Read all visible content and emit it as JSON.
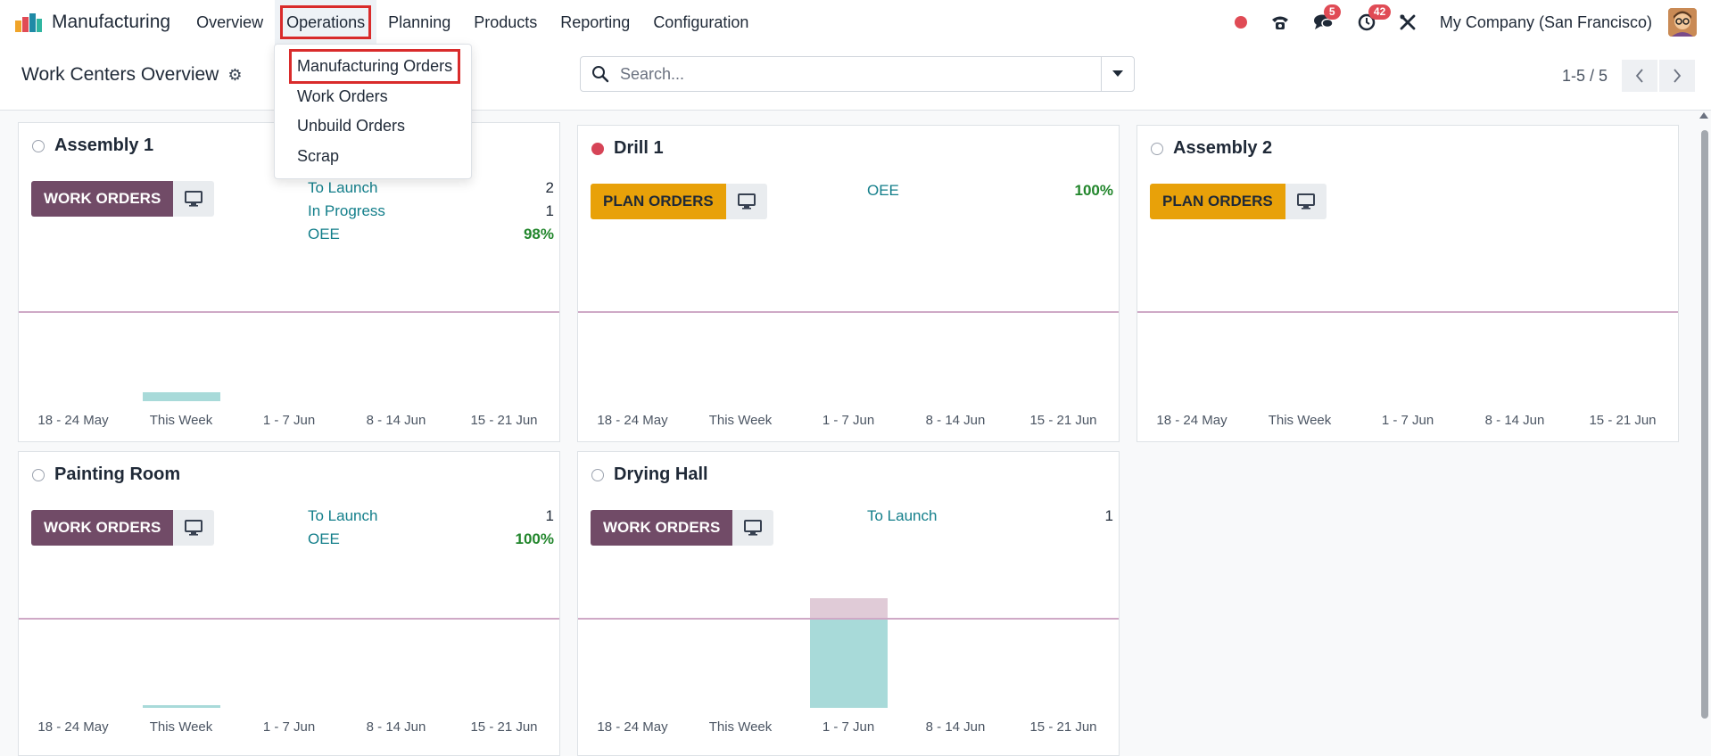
{
  "navbar": {
    "app_name": "Manufacturing",
    "menu": [
      "Overview",
      "Operations",
      "Planning",
      "Products",
      "Reporting",
      "Configuration"
    ],
    "messages_count": "5",
    "activities_count": "42",
    "company": "My Company (San Francisco)"
  },
  "control": {
    "title": "Work Centers Overview",
    "search_placeholder": "Search...",
    "pager": "1-5 / 5"
  },
  "operations_menu": {
    "items": [
      "Manufacturing Orders",
      "Work Orders",
      "Unbuild Orders",
      "Scrap"
    ]
  },
  "cards": [
    {
      "name": "Assembly 1",
      "status": "grey",
      "button": "Work Orders",
      "stats": [
        {
          "label": "To Launch",
          "value": "2"
        },
        {
          "label": "In Progress",
          "value": "1"
        },
        {
          "label": "OEE",
          "value": "98%"
        }
      ]
    },
    {
      "name": "Drill 1",
      "status": "red",
      "button": "Plan Orders",
      "stats": [
        {
          "label": "OEE",
          "value": "100%"
        }
      ]
    },
    {
      "name": "Assembly 2",
      "status": "grey",
      "button": "Plan Orders",
      "stats": []
    },
    {
      "name": "Painting Room",
      "status": "grey",
      "button": "Work Orders",
      "stats": [
        {
          "label": "To Launch",
          "value": "1"
        },
        {
          "label": "OEE",
          "value": "100%"
        }
      ]
    },
    {
      "name": "Drying Hall",
      "status": "grey",
      "button": "Work Orders",
      "stats": [
        {
          "label": "To Launch",
          "value": "1"
        }
      ]
    }
  ],
  "chart_weeks": [
    "18 - 24 May",
    "This Week",
    "1 - 7 Jun",
    "8 - 14 Jun",
    "15 - 21 Jun"
  ],
  "colors": {
    "accent": "#714b67",
    "plan": "#e8a109",
    "link": "#127e8a",
    "highlight": "#d92b2b",
    "bar": "#a8dad9"
  }
}
